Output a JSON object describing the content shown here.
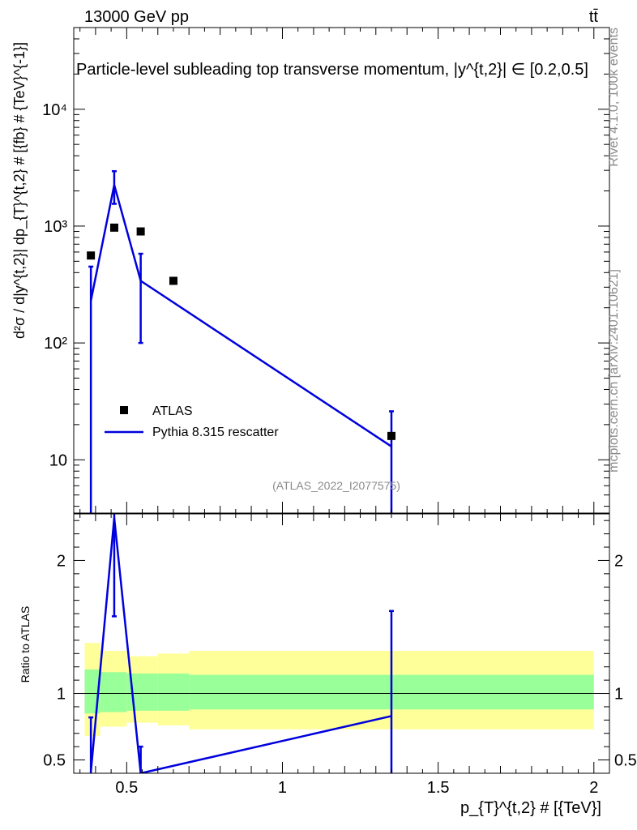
{
  "header": {
    "energy_label": "13000 GeV pp",
    "process_label": "tt̄"
  },
  "side_labels": {
    "rivet": "Rivet 4.1.0,  100k events",
    "mcplots": "mcplots.cern.ch [arXiv:2401.10621]"
  },
  "chart_data": [
    {
      "type": "scatter",
      "panel": "main",
      "title": "Particle-level subleading top transverse momentum, |y^{t,2}| ∈ [0.2,0.5]",
      "ylabel": "d²σ / d|y^{t,2}| dp_{T}^{t,2} # [{fb} # {TeV}^{-1}]",
      "yscale": "log",
      "ylim": [
        3.5,
        50000
      ],
      "xlim": [
        0.33,
        2.05
      ],
      "y_ticks": [
        {
          "value": 10,
          "label": "10"
        },
        {
          "value": 100,
          "label": "10²"
        },
        {
          "value": 1000,
          "label": "10³"
        },
        {
          "value": 10000,
          "label": "10⁴"
        }
      ],
      "watermark": "(ATLAS_2022_I2077575)",
      "legend_position": "middle-left",
      "series": [
        {
          "name": "ATLAS",
          "kind": "markers",
          "color": "#000000",
          "x": [
            0.385,
            0.46,
            0.545,
            0.65,
            1.35
          ],
          "y": [
            560,
            970,
            900,
            340,
            16
          ]
        },
        {
          "name": "Pythia 8.315 rescatter",
          "kind": "line",
          "color": "#0000dd",
          "x": [
            0.385,
            0.46,
            0.545,
            1.35
          ],
          "y": [
            230,
            2250,
            340,
            13
          ],
          "err_low": [
            3.5,
            1550,
            100,
            3.5
          ],
          "err_high": [
            450,
            2950,
            580,
            26
          ]
        }
      ]
    },
    {
      "type": "line",
      "panel": "ratio",
      "ylabel": "Ratio to ATLAS",
      "xlabel": "p_{T}^{t,2} # [{TeV}]",
      "ylim": [
        0.4,
        2.35
      ],
      "xlim": [
        0.33,
        2.05
      ],
      "y_ticks": [
        {
          "value": 0.5,
          "label": "0.5"
        },
        {
          "value": 1,
          "label": "1"
        },
        {
          "value": 2,
          "label": "2"
        }
      ],
      "x_ticks": [
        {
          "value": 0.5,
          "label": "0.5"
        },
        {
          "value": 1,
          "label": "1"
        },
        {
          "value": 1.5,
          "label": "1.5"
        },
        {
          "value": 2,
          "label": "2"
        }
      ],
      "bands": [
        {
          "x0": 0.365,
          "x1": 0.415,
          "inner": [
            0.85,
            1.18
          ],
          "outer": [
            0.68,
            1.38
          ]
        },
        {
          "x0": 0.415,
          "x1": 0.5,
          "inner": [
            0.86,
            1.16
          ],
          "outer": [
            0.75,
            1.32
          ]
        },
        {
          "x0": 0.5,
          "x1": 0.6,
          "inner": [
            0.87,
            1.15
          ],
          "outer": [
            0.78,
            1.28
          ]
        },
        {
          "x0": 0.6,
          "x1": 0.7,
          "inner": [
            0.87,
            1.15
          ],
          "outer": [
            0.76,
            1.3
          ]
        },
        {
          "x0": 0.7,
          "x1": 2.0,
          "inner": [
            0.88,
            1.14
          ],
          "outer": [
            0.73,
            1.32
          ]
        }
      ],
      "band_colors": {
        "inner": "#99ff99",
        "outer": "#ffff99"
      },
      "series": [
        {
          "name": "Pythia 8.315 rescatter",
          "color": "#0000dd",
          "x": [
            0.385,
            0.46,
            0.545,
            1.35
          ],
          "y": [
            0.41,
            2.32,
            0.38,
            0.83
          ],
          "err_low": [
            0.3,
            1.58,
            0.3,
            0.3
          ],
          "err_high": [
            0.82,
            2.35,
            0.6,
            1.62
          ]
        }
      ]
    }
  ]
}
